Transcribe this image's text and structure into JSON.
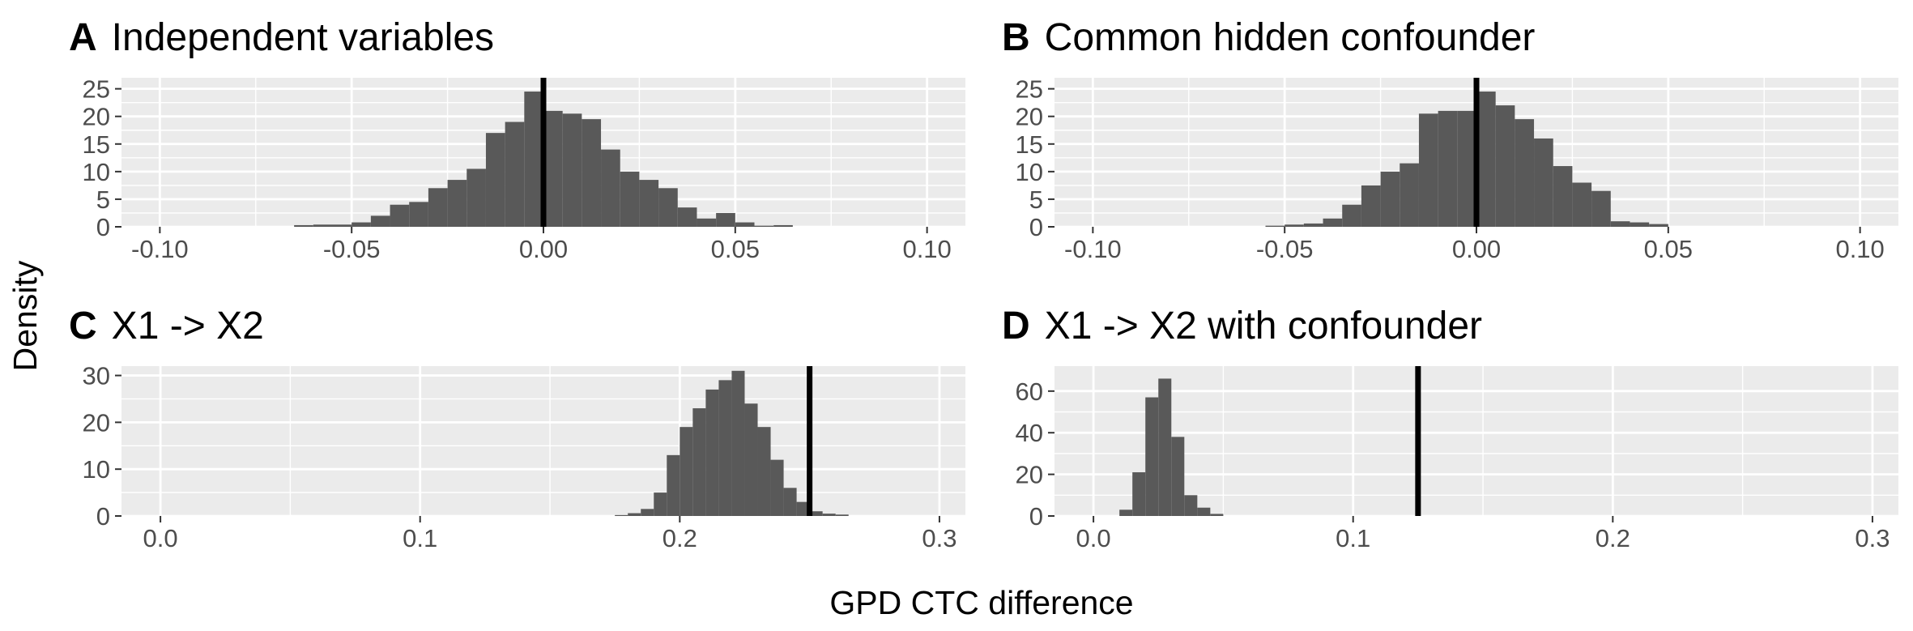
{
  "figure": {
    "ylabel": "Density",
    "xlabel": "GPD CTC difference"
  },
  "chart_data": [
    {
      "type": "bar",
      "letter": "A",
      "title": "Independent variables",
      "xlim": [
        -0.11,
        0.11
      ],
      "ylim": [
        0,
        27
      ],
      "xticks": [
        -0.1,
        -0.05,
        0.0,
        0.05,
        0.1
      ],
      "xtick_labels": [
        "-0.10",
        "-0.05",
        "0.00",
        "0.05",
        "0.10"
      ],
      "yticks": [
        0,
        5,
        10,
        15,
        20,
        25
      ],
      "ytick_labels": [
        "0",
        "5",
        "10",
        "15",
        "20",
        "25"
      ],
      "vline": 0.0,
      "bins": {
        "x": [
          -0.0625,
          -0.0575,
          -0.0525,
          -0.0475,
          -0.0425,
          -0.0375,
          -0.0325,
          -0.0275,
          -0.0225,
          -0.0175,
          -0.0125,
          -0.0075,
          -0.0025,
          0.0025,
          0.0075,
          0.0125,
          0.0175,
          0.0225,
          0.0275,
          0.0325,
          0.0375,
          0.0425,
          0.0475,
          0.0525,
          0.0575,
          0.0625
        ],
        "width": 0.005,
        "values": [
          0.3,
          0.4,
          0.4,
          0.8,
          2,
          4,
          4.5,
          7,
          8.5,
          10.5,
          17,
          19,
          24.5,
          21,
          20.5,
          19.5,
          14,
          10,
          8.5,
          7,
          3.5,
          1.5,
          2.5,
          0.8,
          0.2,
          0.3
        ]
      }
    },
    {
      "type": "bar",
      "letter": "B",
      "title": "Common hidden confounder",
      "xlim": [
        -0.11,
        0.11
      ],
      "ylim": [
        0,
        27
      ],
      "xticks": [
        -0.1,
        -0.05,
        0.0,
        0.05,
        0.1
      ],
      "xtick_labels": [
        "-0.10",
        "-0.05",
        "0.00",
        "0.05",
        "0.10"
      ],
      "yticks": [
        0,
        5,
        10,
        15,
        20,
        25
      ],
      "ytick_labels": [
        "0",
        "5",
        "10",
        "15",
        "20",
        "25"
      ],
      "vline": 0.0,
      "bins": {
        "x": [
          -0.0525,
          -0.0475,
          -0.0425,
          -0.0375,
          -0.0325,
          -0.0275,
          -0.0225,
          -0.0175,
          -0.0125,
          -0.0075,
          -0.0025,
          0.0025,
          0.0075,
          0.0125,
          0.0175,
          0.0225,
          0.0275,
          0.0325,
          0.0375,
          0.0425,
          0.0475
        ],
        "width": 0.005,
        "values": [
          0.2,
          0.4,
          0.6,
          1.5,
          4,
          7.5,
          10,
          11.5,
          20.5,
          21,
          21,
          24.5,
          22,
          19.5,
          16,
          11,
          8,
          6.5,
          1,
          0.8,
          0.5
        ]
      }
    },
    {
      "type": "bar",
      "letter": "C",
      "title": "X1 -> X2",
      "xlim": [
        -0.015,
        0.31
      ],
      "ylim": [
        0,
        32
      ],
      "xticks": [
        0.0,
        0.1,
        0.2,
        0.3
      ],
      "xtick_labels": [
        "0.0",
        "0.1",
        "0.2",
        "0.3"
      ],
      "yticks": [
        0,
        10,
        20,
        30
      ],
      "ytick_labels": [
        "0",
        "10",
        "20",
        "30"
      ],
      "vline": 0.25,
      "bins": {
        "x": [
          0.1775,
          0.1825,
          0.1875,
          0.1925,
          0.1975,
          0.2025,
          0.2075,
          0.2125,
          0.2175,
          0.2225,
          0.2275,
          0.2325,
          0.2375,
          0.2425,
          0.2475,
          0.2525,
          0.2575,
          0.2625
        ],
        "width": 0.005,
        "values": [
          0.2,
          0.6,
          1.5,
          5,
          13,
          19,
          23,
          27,
          29,
          31,
          24,
          19,
          12,
          6,
          3,
          1,
          0.5,
          0.3
        ]
      }
    },
    {
      "type": "bar",
      "letter": "D",
      "title": "X1 -> X2 with confounder",
      "xlim": [
        -0.015,
        0.31
      ],
      "ylim": [
        0,
        72
      ],
      "xticks": [
        0.0,
        0.1,
        0.2,
        0.3
      ],
      "xtick_labels": [
        "0.0",
        "0.1",
        "0.2",
        "0.3"
      ],
      "yticks": [
        0,
        20,
        40,
        60
      ],
      "ytick_labels": [
        "0",
        "20",
        "40",
        "60"
      ],
      "vline": 0.125,
      "bins": {
        "x": [
          0.0125,
          0.0175,
          0.0225,
          0.0275,
          0.0325,
          0.0375,
          0.0425,
          0.0475
        ],
        "width": 0.005,
        "values": [
          3,
          21,
          57,
          66,
          38,
          10,
          4,
          1
        ]
      }
    }
  ]
}
